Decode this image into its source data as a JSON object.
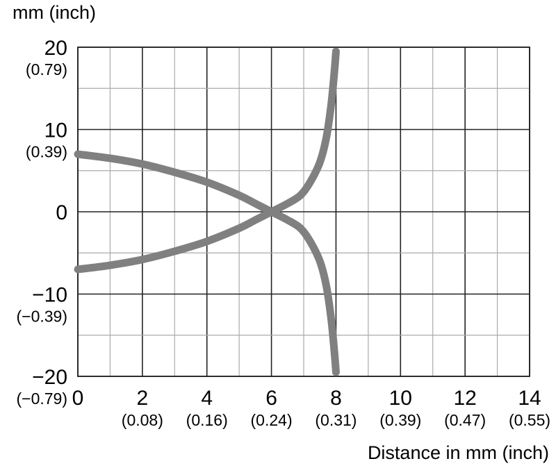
{
  "chart_data": {
    "type": "line",
    "y_unit_label": "mm (inch)",
    "xlabel": "Distance in mm (inch)",
    "xlim": [
      0,
      14
    ],
    "ylim": [
      -20,
      20
    ],
    "grid": true,
    "legend": "none",
    "x_ticks": [
      {
        "value": 0,
        "label": "0",
        "sub": ""
      },
      {
        "value": 2,
        "label": "2",
        "sub": "(0.08)"
      },
      {
        "value": 4,
        "label": "4",
        "sub": "(0.16)"
      },
      {
        "value": 6,
        "label": "6",
        "sub": "(0.24)"
      },
      {
        "value": 8,
        "label": "8",
        "sub": "(0.31)"
      },
      {
        "value": 10,
        "label": "10",
        "sub": "(0.39)"
      },
      {
        "value": 12,
        "label": "12",
        "sub": "(0.47)"
      },
      {
        "value": 14,
        "label": "14",
        "sub": "(0.55)"
      }
    ],
    "y_ticks": [
      {
        "value": 20,
        "label": "20",
        "sub": "(0.79)"
      },
      {
        "value": 10,
        "label": "10",
        "sub": "(0.39)"
      },
      {
        "value": 0,
        "label": "0",
        "sub": ""
      },
      {
        "value": -10,
        "label": "−10",
        "sub": "(−0.39)"
      },
      {
        "value": -20,
        "label": "−20",
        "sub": "(−0.79)"
      }
    ],
    "series": [
      {
        "color": "#808080",
        "points": [
          [
            0,
            7
          ],
          [
            1,
            6.5
          ],
          [
            2,
            5.8
          ],
          [
            3,
            4.8
          ],
          [
            4,
            3.6
          ],
          [
            5,
            2
          ],
          [
            5.5,
            1
          ],
          [
            6,
            0
          ],
          [
            6.5,
            -1
          ],
          [
            6.9,
            -2
          ],
          [
            7.2,
            -3.6
          ],
          [
            7.5,
            -6
          ],
          [
            7.7,
            -9
          ],
          [
            7.85,
            -13
          ],
          [
            7.95,
            -17
          ],
          [
            8,
            -19.5
          ]
        ]
      },
      {
        "color": "#808080",
        "points": [
          [
            0,
            -7
          ],
          [
            1,
            -6.5
          ],
          [
            2,
            -5.8
          ],
          [
            3,
            -4.8
          ],
          [
            4,
            -3.6
          ],
          [
            5,
            -2
          ],
          [
            5.5,
            -1
          ],
          [
            6,
            0
          ],
          [
            6.5,
            1
          ],
          [
            6.9,
            2
          ],
          [
            7.2,
            3.6
          ],
          [
            7.5,
            6
          ],
          [
            7.7,
            9
          ],
          [
            7.85,
            13
          ],
          [
            7.95,
            17
          ],
          [
            8,
            19.5
          ]
        ]
      }
    ]
  }
}
